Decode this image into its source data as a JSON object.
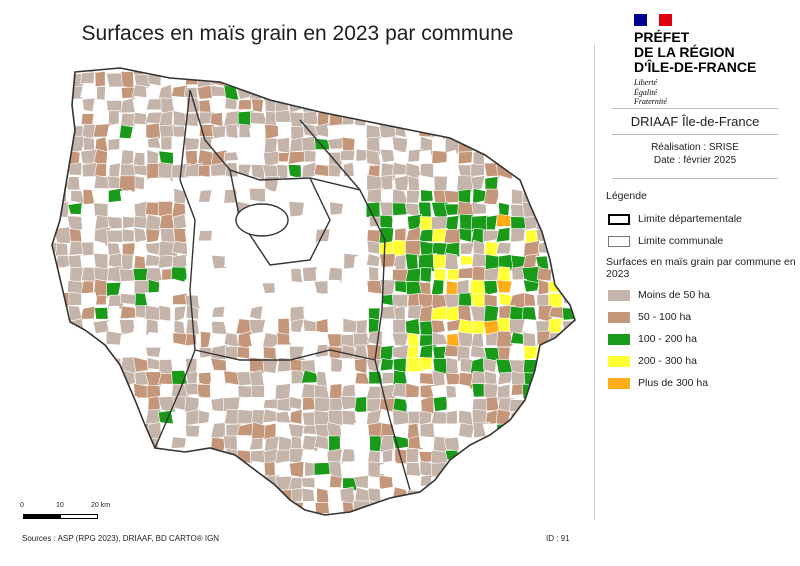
{
  "title": "Surfaces en maïs grain en 2023 par commune",
  "header": {
    "prefect_lines": [
      "PRÉFET",
      "DE LA RÉGION",
      "D'ÎLE-DE-FRANCE"
    ],
    "motto": [
      "Liberté",
      "Égalité",
      "Fraternité"
    ],
    "agency": "DRIAAF Île-de-France",
    "realisation": "Réalisation : SRISE",
    "date": "Date : février 2025"
  },
  "legend": {
    "heading": "Légende",
    "boundaries": [
      {
        "id": "dept",
        "label": "Limite départementale"
      },
      {
        "id": "comm",
        "label": "Limite communale"
      }
    ],
    "classes_title": "Surfaces en maïs grain par commune en 2023",
    "classes": [
      {
        "id": "c1",
        "label": "Moins de 50 ha",
        "color": "#c4b4aa"
      },
      {
        "id": "c2",
        "label": "50 - 100 ha",
        "color": "#c4967a"
      },
      {
        "id": "c3",
        "label": "100 - 200 ha",
        "color": "#199a19"
      },
      {
        "id": "c4",
        "label": "200 - 300 ha",
        "color": "#ffff33"
      },
      {
        "id": "c5",
        "label": "Plus de 300 ha",
        "color": "#ffae19"
      }
    ]
  },
  "scalebar": {
    "ticks": [
      "0",
      "10",
      "20 km"
    ]
  },
  "sources": "Sources : ASP (RPG 2023), DRIAAF, BD CARTO® IGN",
  "map_id": "ID : 91",
  "colors": {
    "flag_blue": "#000091",
    "flag_white": "#ffffff",
    "flag_red": "#e1000f",
    "none": "#ffffff",
    "outline": "#333333"
  }
}
